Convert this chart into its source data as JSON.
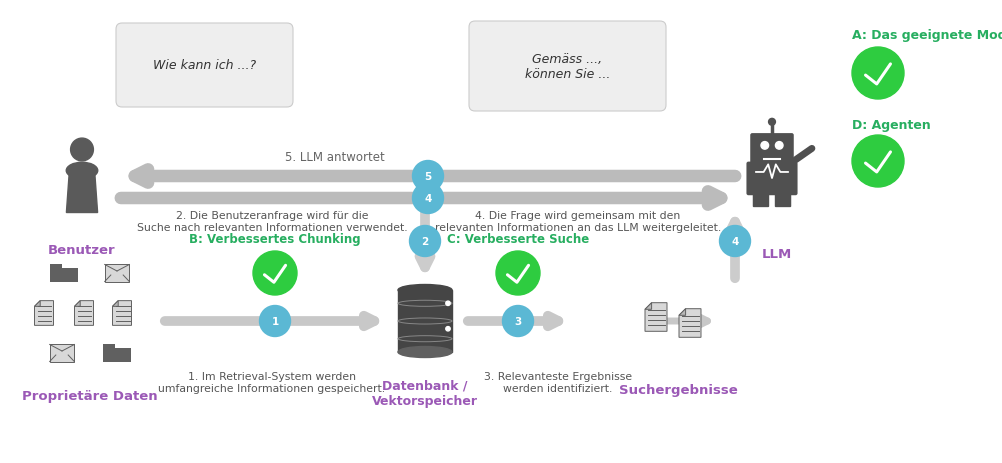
{
  "bg_color": "#ffffff",
  "blue_circle": "#5bb8d4",
  "green_check": "#2ecc40",
  "green_text": "#27ae60",
  "purple_text": "#9b59b6",
  "bubble_bg": "#eeeeee",
  "arrow_gray": "#bbbbbb",
  "icon_color": "#606060",
  "speech_bubble_left_text": "Wie kann ich ...?",
  "speech_bubble_right_text": "Gemäss ...,\nkönnen Sie ...",
  "step5_label": "5. LLM antwortet",
  "step2_text_left": "2. Die Benutzeranfrage wird für die\nSuche nach relevanten Informationen verwendet.",
  "step4_text_right": "4. Die Frage wird gemeinsam mit den\nrelevanten Informationen an das LLM weitergeleitet.",
  "step1_text": "1. Im Retrieval-System werden\numfangreiche Informationen gespeichert.",
  "step3_text": "3. Relevanteste Ergebnisse\nwerden identifiziert.",
  "label_benutzer": "Benutzer",
  "label_llm": "LLM",
  "label_proprietare": "Proprietäre Daten",
  "label_datenbank": "Datenbank /\nVektorspeicher",
  "label_suchergebnisse": "Suchergebnisse",
  "label_A": "A: Das geeignete Modell",
  "label_D": "D: Agenten",
  "label_B": "B: Verbessertes Chunking",
  "label_C": "C: Verbesserte Suche"
}
